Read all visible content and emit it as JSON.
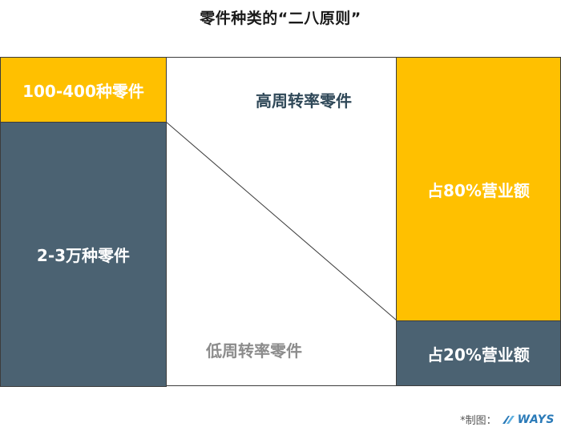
{
  "title": "零件种类的“二八原则”",
  "left": {
    "top_label": "100-400种零件",
    "bottom_label": "2-3万种零件"
  },
  "middle": {
    "top_label": "高周转率零件",
    "bottom_label": "低周转率零件"
  },
  "right": {
    "top_label": "占80%营业额",
    "bottom_label": "占20%营业额"
  },
  "credit": {
    "label": "*制图：",
    "logo_icon": "ways-logo-icon",
    "logo_text": "WAYS"
  },
  "colors": {
    "yellow": "#ffc000",
    "slate": "#4b6272",
    "mid_top_text": "#2f4858",
    "mid_bottom_text": "#8c8c8c"
  }
}
